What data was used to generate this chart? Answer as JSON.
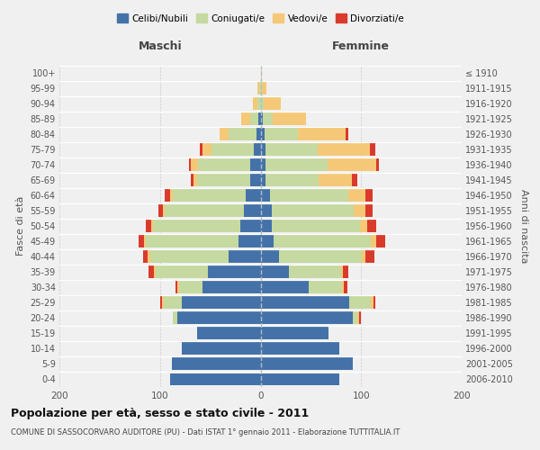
{
  "age_groups": [
    "0-4",
    "5-9",
    "10-14",
    "15-19",
    "20-24",
    "25-29",
    "30-34",
    "35-39",
    "40-44",
    "45-49",
    "50-54",
    "55-59",
    "60-64",
    "65-69",
    "70-74",
    "75-79",
    "80-84",
    "85-89",
    "90-94",
    "95-99",
    "100+"
  ],
  "birth_years": [
    "2006-2010",
    "2001-2005",
    "1996-2000",
    "1991-1995",
    "1986-1990",
    "1981-1985",
    "1976-1980",
    "1971-1975",
    "1966-1970",
    "1961-1965",
    "1956-1960",
    "1951-1955",
    "1946-1950",
    "1941-1945",
    "1936-1940",
    "1931-1935",
    "1926-1930",
    "1921-1925",
    "1916-1920",
    "1911-1915",
    "≤ 1910"
  ],
  "maschi_celibi": [
    90,
    88,
    78,
    63,
    83,
    78,
    58,
    52,
    32,
    22,
    20,
    17,
    15,
    10,
    10,
    7,
    4,
    2,
    0,
    0,
    0
  ],
  "maschi_coniugati": [
    0,
    0,
    0,
    0,
    4,
    18,
    23,
    52,
    78,
    92,
    87,
    78,
    72,
    53,
    52,
    42,
    28,
    8,
    3,
    1,
    0
  ],
  "maschi_vedovi": [
    0,
    0,
    0,
    0,
    0,
    2,
    2,
    2,
    2,
    2,
    2,
    2,
    3,
    4,
    7,
    9,
    9,
    9,
    5,
    2,
    0
  ],
  "maschi_divorziati": [
    0,
    0,
    0,
    0,
    0,
    2,
    2,
    5,
    5,
    5,
    5,
    5,
    5,
    2,
    2,
    2,
    0,
    0,
    0,
    0,
    0
  ],
  "femmine_nubili": [
    78,
    92,
    78,
    68,
    92,
    88,
    48,
    28,
    18,
    13,
    11,
    11,
    9,
    5,
    5,
    5,
    4,
    2,
    0,
    0,
    0
  ],
  "femmine_coniugate": [
    0,
    0,
    0,
    0,
    4,
    22,
    33,
    52,
    83,
    97,
    88,
    82,
    78,
    53,
    62,
    52,
    33,
    10,
    3,
    1,
    0
  ],
  "femmine_vedove": [
    0,
    0,
    0,
    0,
    2,
    2,
    2,
    2,
    3,
    5,
    7,
    11,
    17,
    33,
    48,
    52,
    48,
    33,
    17,
    5,
    1
  ],
  "femmine_divorziate": [
    0,
    0,
    0,
    0,
    2,
    2,
    3,
    5,
    9,
    9,
    9,
    7,
    7,
    5,
    3,
    5,
    2,
    0,
    0,
    0,
    0
  ],
  "colors": {
    "celibi": "#4472a8",
    "coniugati": "#c5d9a0",
    "vedovi": "#f5c878",
    "divorziati": "#d93a2b"
  },
  "xlim": 200,
  "title": "Popolazione per età, sesso e stato civile - 2011",
  "subtitle": "COMUNE DI SASSOCORVARO AUDITORE (PU) - Dati ISTAT 1° gennaio 2011 - Elaborazione TUTTITALIA.IT",
  "ylabel_left": "Fasce di età",
  "ylabel_right": "Anni di nascita",
  "xlabel_left": "Maschi",
  "xlabel_right": "Femmine",
  "legend_labels": [
    "Celibi/Nubili",
    "Coniugati/e",
    "Vedovi/e",
    "Divorziati/e"
  ],
  "bg_color": "#f0f0f0"
}
